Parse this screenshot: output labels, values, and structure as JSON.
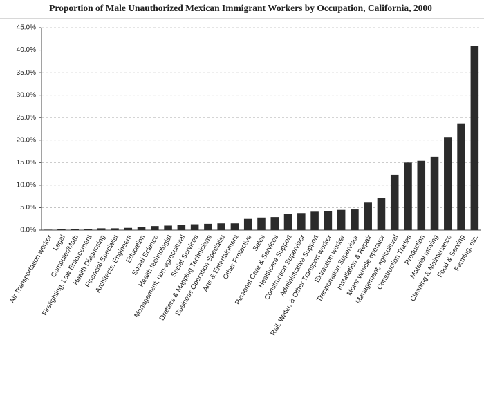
{
  "chart_data": {
    "type": "bar",
    "title": "Proportion of Male Unauthorized Mexican Immigrant Workers by Occupation, California, 2000",
    "categories": [
      "Air Transportation worker",
      "Legal",
      "Computer/Math",
      "Firefighting, Law Enforcement",
      "Health Diagnosing",
      "Financial Specialist",
      "Architects, Engineers",
      "Education",
      "Social Science",
      "Health technologist",
      "Management, non-agrocultural",
      "Social Services",
      "Drafters & Mapping Technicians",
      "Business Operation Specialist",
      "Arts & Entertainment",
      "Other Protective",
      "Sales",
      "Personal Care & Services",
      "Healthcare Support",
      "Construction Supervisor",
      "Administrative Support",
      "Rail, Water, & Other Transport worker",
      "Extraction worker",
      "Tranportation Supervisor",
      "Installation & Repair",
      "Motor vehicle operator",
      "Management, agricultural",
      "Construction Trades",
      "Production",
      "Material moving",
      "Cleaning & Maintenance",
      "Food & Serving",
      "Farming, etc."
    ],
    "values": [
      0.1,
      0.2,
      0.3,
      0.3,
      0.4,
      0.4,
      0.5,
      0.7,
      0.9,
      1.0,
      1.2,
      1.3,
      1.4,
      1.5,
      1.5,
      2.5,
      2.8,
      2.9,
      3.6,
      3.8,
      4.1,
      4.3,
      4.5,
      4.6,
      6.1,
      7.1,
      12.3,
      15.0,
      15.4,
      16.3,
      20.7,
      23.7,
      40.9
    ],
    "color": "#2b2b2b",
    "ylim": [
      0,
      45
    ],
    "yticks": [
      {
        "value": 0,
        "label": "0.0%"
      },
      {
        "value": 5,
        "label": "5.0%"
      },
      {
        "value": 10,
        "label": "10.0%"
      },
      {
        "value": 15,
        "label": "15.0%"
      },
      {
        "value": 20,
        "label": "20.0%"
      },
      {
        "value": 25,
        "label": "25.0%"
      },
      {
        "value": 30,
        "label": "30.0%"
      },
      {
        "value": 35,
        "label": "35.0%"
      },
      {
        "value": 40,
        "label": "40.0%"
      },
      {
        "value": 45,
        "label": "45.0%"
      }
    ],
    "grid": true
  }
}
